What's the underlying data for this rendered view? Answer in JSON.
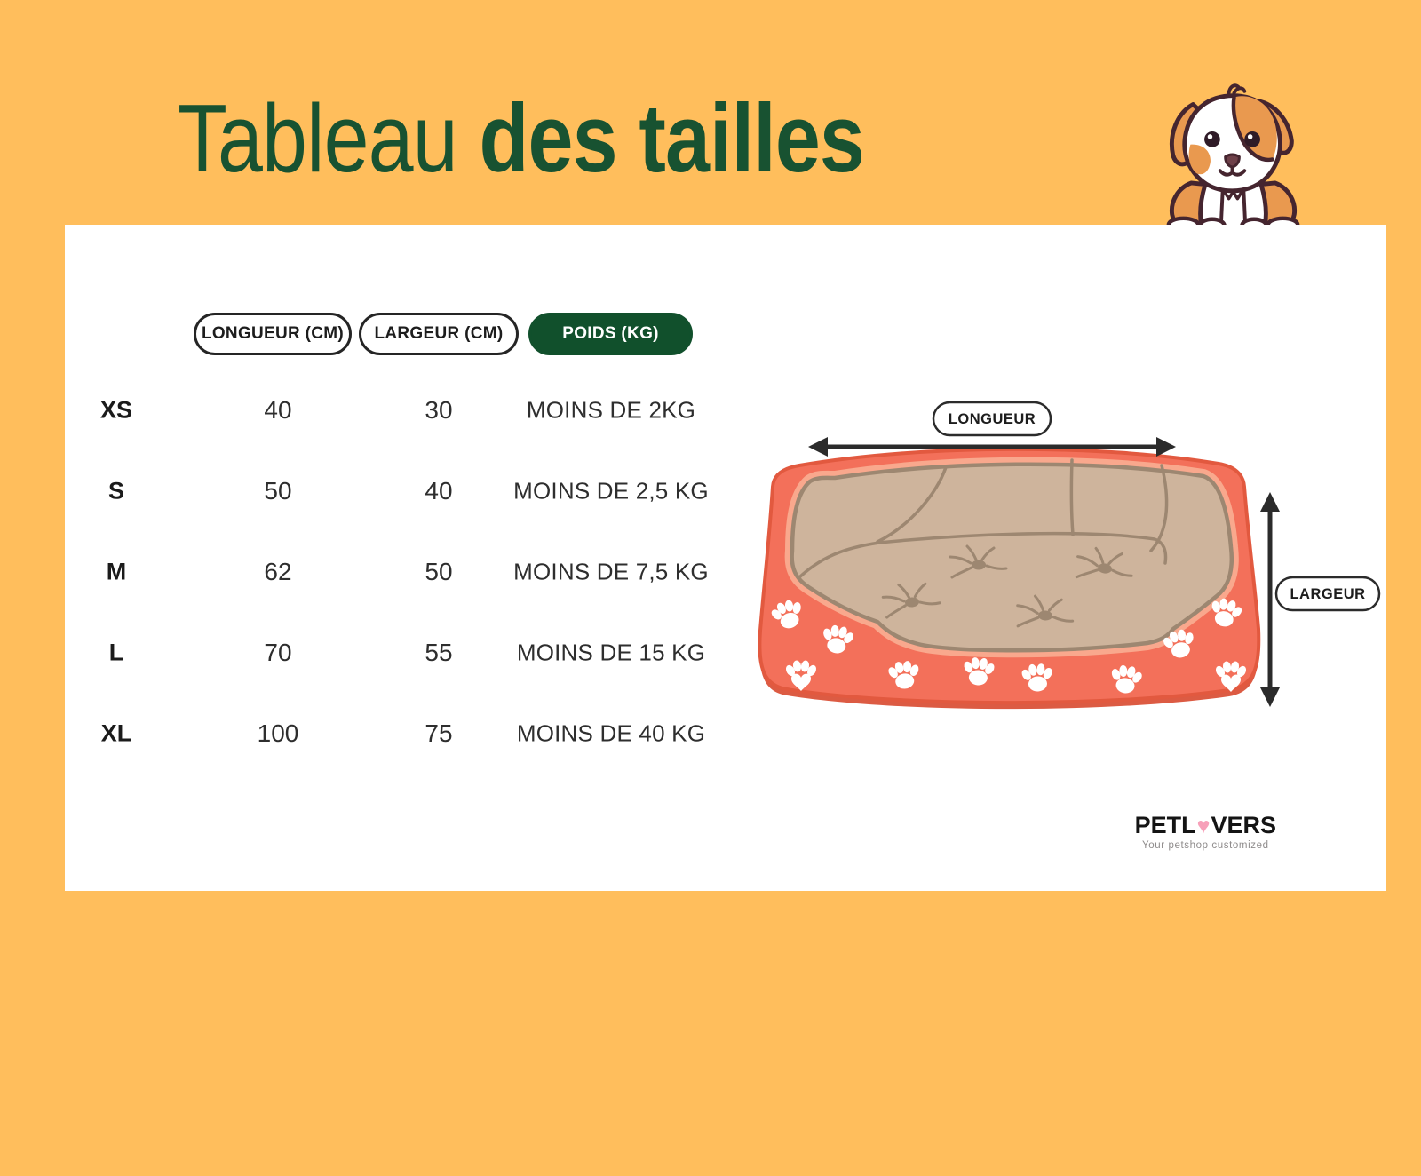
{
  "title": {
    "regular": "Tableau",
    "bold": "des tailles"
  },
  "table": {
    "headers": [
      {
        "label": "LONGUEUR (CM)",
        "style": "outline"
      },
      {
        "label": "LARGEUR (CM)",
        "style": "outline"
      },
      {
        "label": "POIDS (KG)",
        "style": "filled"
      }
    ],
    "rows": [
      {
        "size": "XS",
        "longueur": "40",
        "largeur": "30",
        "poids": "MOINS DE 2KG"
      },
      {
        "size": "S",
        "longueur": "50",
        "largeur": "40",
        "poids": "MOINS DE 2,5 KG"
      },
      {
        "size": "M",
        "longueur": "62",
        "largeur": "50",
        "poids": "MOINS DE 7,5 KG"
      },
      {
        "size": "L",
        "longueur": "70",
        "largeur": "55",
        "poids": "MOINS DE 15 KG"
      },
      {
        "size": "XL",
        "longueur": "100",
        "largeur": "75",
        "poids": "MOINS DE 40 KG"
      }
    ]
  },
  "diagram": {
    "longueur_label": "LONGUEUR",
    "largeur_label": "LARGEUR"
  },
  "logo": {
    "part1": "PETL",
    "heart": "♥",
    "part2": "VERS",
    "tagline": "Your petshop customized"
  },
  "colors": {
    "background": "#FFBE5C",
    "title_green": "#185231",
    "poids_pill_green": "#11502C",
    "text": "#2E2E2E",
    "bed_coral": "#F3705A",
    "bed_coral_dark": "#DC5B43",
    "bed_salmon_highlight": "#F9A88D",
    "cushion_tan": "#CEB49C",
    "cushion_line": "#9D8771",
    "arrow_black": "#2B2B2B",
    "logo_heart_pink": "#F7A0B9",
    "dog_orange": "#E9994F",
    "dog_outline": "#45252F"
  },
  "icons": {
    "dog": "puppy-illustration",
    "paw": "paw-print-icon",
    "heart": "heart-icon"
  }
}
